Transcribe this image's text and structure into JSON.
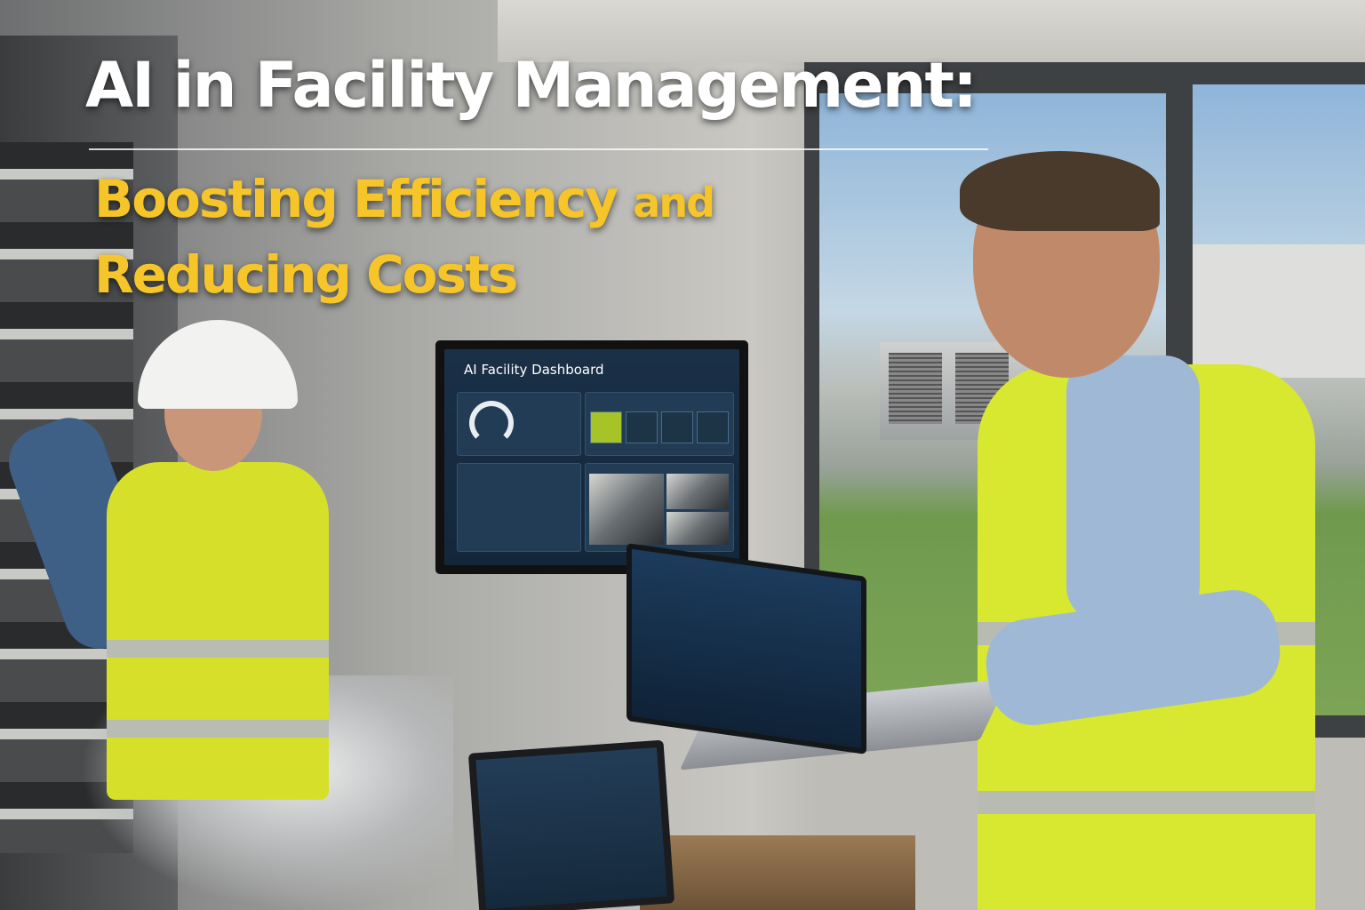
{
  "headline": "AI in Facility Management:",
  "subheadline": {
    "line1_main": "Boosting Efficiency",
    "line1_tail": "and",
    "line2": "Reducing Costs"
  },
  "monitor": {
    "title": "AI Facility Dashboard"
  },
  "colors": {
    "headline": "#ffffff",
    "subheadline": "#f5c52a",
    "vest": "#d8e730",
    "screen": "#1a3046"
  }
}
